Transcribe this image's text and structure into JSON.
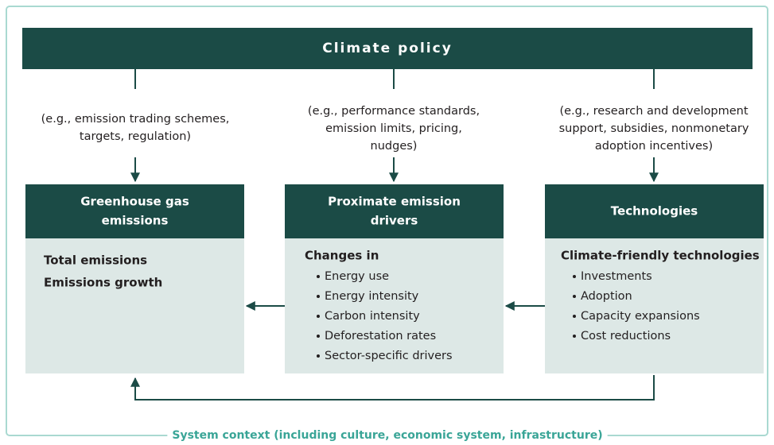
{
  "title": "Climate policy",
  "columns": [
    {
      "examples": [
        "(e.g., emission trading schemes,",
        "targets, regulation)"
      ],
      "header": [
        "Greenhouse gas",
        "emissions"
      ],
      "lines": [
        "Total emissions",
        "Emissions growth"
      ]
    },
    {
      "examples": [
        "(e.g., performance standards,",
        "emission limits, pricing,",
        "nudges)"
      ],
      "header": [
        "Proximate emission",
        "drivers"
      ],
      "heading": "Changes in",
      "items": [
        "Energy use",
        "Energy intensity",
        "Carbon intensity",
        "Deforestation rates",
        "Sector-specific drivers"
      ]
    },
    {
      "examples": [
        "(e.g., research and development",
        "support, subsidies, nonmonetary",
        "adoption incentives)"
      ],
      "header": [
        "Technologies"
      ],
      "heading": "Climate-friendly technologies",
      "items": [
        "Investments",
        "Adoption",
        "Capacity expansions",
        "Cost reductions"
      ]
    }
  ],
  "footer": "System context (including culture, economic system, infrastructure)"
}
